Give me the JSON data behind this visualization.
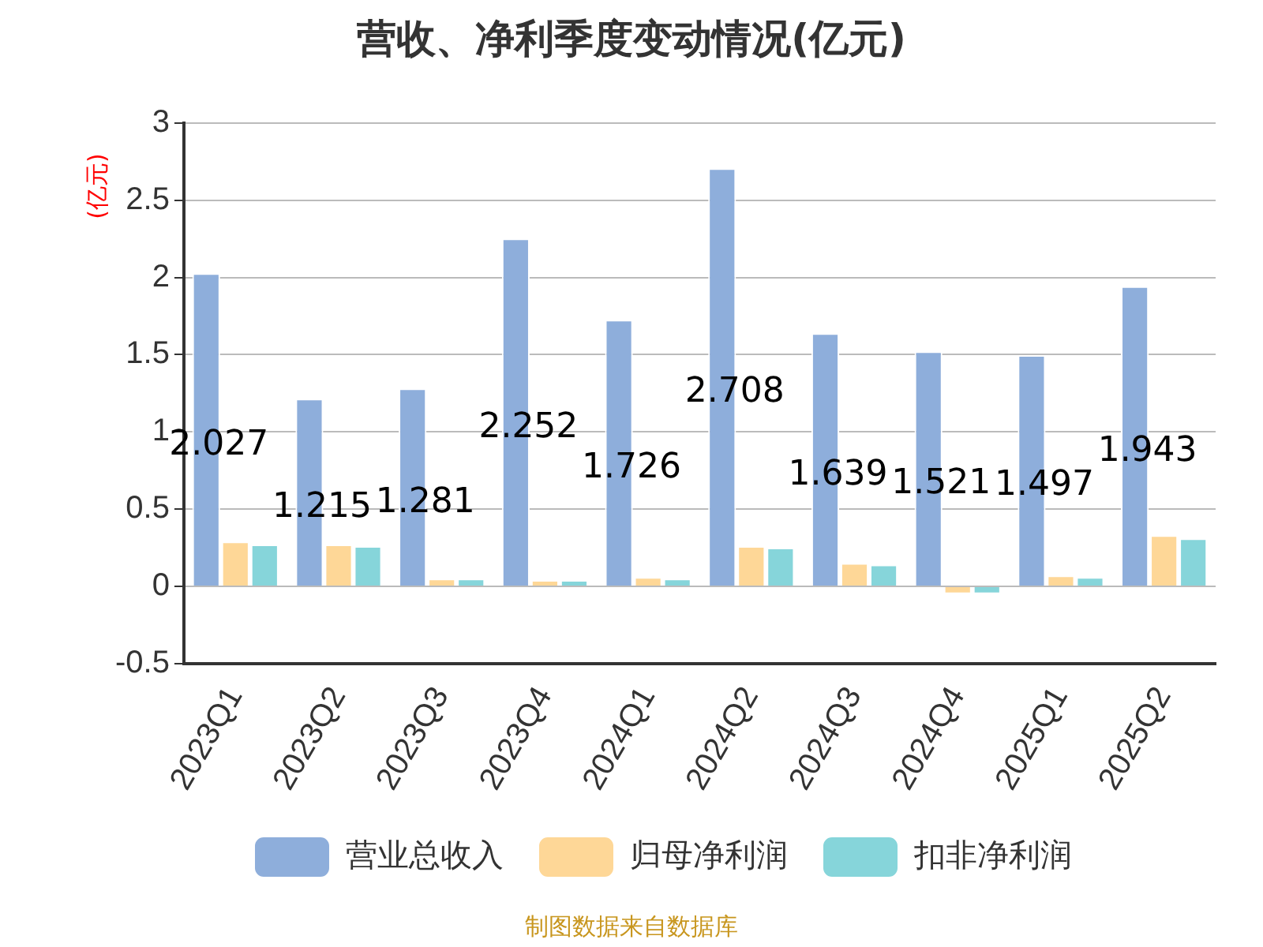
{
  "chart_data": {
    "type": "bar",
    "title": "营收、净利季度变动情况(亿元)",
    "ylabel": "(亿元)",
    "categories": [
      "2023Q1",
      "2023Q2",
      "2023Q3",
      "2023Q4",
      "2024Q1",
      "2024Q2",
      "2024Q3",
      "2024Q4",
      "2025Q1",
      "2025Q2"
    ],
    "series": [
      {
        "name": "营业总收入",
        "color": "#8eaedb",
        "values": [
          2.027,
          1.215,
          1.281,
          2.252,
          1.726,
          2.708,
          1.639,
          1.521,
          1.497,
          1.943
        ],
        "value_labels": [
          "2.027",
          "1.215",
          "1.281",
          "2.252",
          "1.726",
          "2.708",
          "1.639",
          "1.521",
          "1.497",
          "1.943"
        ]
      },
      {
        "name": "归母净利润",
        "color": "#fed797",
        "values": [
          0.29,
          0.27,
          0.05,
          0.04,
          0.06,
          0.26,
          0.15,
          -0.05,
          0.07,
          0.33
        ]
      },
      {
        "name": "扣非净利润",
        "color": "#86d5da",
        "values": [
          0.27,
          0.26,
          0.05,
          0.04,
          0.05,
          0.25,
          0.14,
          -0.05,
          0.06,
          0.31
        ]
      }
    ],
    "ylim": [
      -0.5,
      3
    ],
    "yticks": [
      -0.5,
      0,
      0.5,
      1,
      1.5,
      2,
      2.5,
      3
    ],
    "grid": "y",
    "legend": "bottom",
    "annotations": [
      "制图数据来自数据库"
    ]
  }
}
